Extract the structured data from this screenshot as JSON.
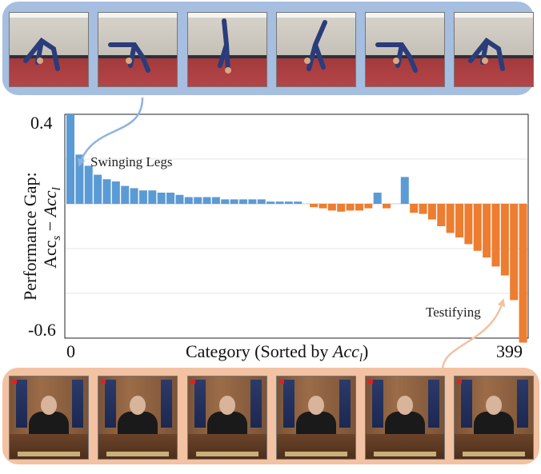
{
  "chart_data": {
    "type": "bar",
    "ylabel_line1": "Performance Gap:",
    "ylabel_line2_parts": [
      "Acc",
      "s",
      " − ",
      "Acc",
      "l"
    ],
    "xlabel_parts": [
      "Category (Sorted by ",
      "Acc",
      "l",
      ")"
    ],
    "ylim": [
      -0.6,
      0.4
    ],
    "yticks": [
      "0.4",
      "-0.6"
    ],
    "xticks": [
      "0",
      "399"
    ],
    "xlim": [
      0,
      399
    ],
    "grid": true,
    "series": [
      {
        "color": "#5b9bd5",
        "x": [
          0,
          8,
          16,
          24,
          32,
          40,
          48,
          56,
          64,
          72,
          80,
          88,
          96,
          104,
          112,
          120,
          128,
          136,
          144,
          152,
          160,
          168,
          176,
          184,
          192,
          200,
          270,
          294
        ],
        "values": [
          0.4,
          0.22,
          0.17,
          0.13,
          0.11,
          0.1,
          0.08,
          0.07,
          0.06,
          0.06,
          0.05,
          0.05,
          0.04,
          0.03,
          0.03,
          0.03,
          0.03,
          0.02,
          0.02,
          0.02,
          0.02,
          0.02,
          0.01,
          0.01,
          0.01,
          0.01,
          0.05,
          0.12
        ]
      },
      {
        "color": "#ed7d31",
        "x": [
          214,
          222,
          230,
          238,
          246,
          254,
          262,
          278,
          302,
          310,
          318,
          326,
          334,
          342,
          350,
          358,
          366,
          374,
          382,
          390,
          398
        ],
        "values": [
          -0.015,
          -0.02,
          -0.03,
          -0.035,
          -0.03,
          -0.03,
          -0.02,
          -0.02,
          -0.04,
          -0.045,
          -0.07,
          -0.1,
          -0.13,
          -0.15,
          -0.18,
          -0.21,
          -0.24,
          -0.28,
          -0.32,
          -0.43,
          -0.62
        ]
      }
    ],
    "annotations": [
      "Swinging Legs",
      "Testifying"
    ]
  },
  "colors": {
    "top_strip": "#a6bedf",
    "bottom_strip": "#f2c2a2",
    "arrow_blue": "#8fb3dd",
    "arrow_orange": "#f2c2a2"
  },
  "top_frames": [
    {
      "icon": "gymnast-bent-icon"
    },
    {
      "icon": "gymnast-leg-swing-icon"
    },
    {
      "icon": "gymnast-handstand-icon"
    },
    {
      "icon": "gymnast-cartwheel-icon"
    },
    {
      "icon": "gymnast-leg-swing-icon"
    },
    {
      "icon": "gymnast-bent-icon"
    }
  ],
  "bottom_frames": [
    {
      "icon": "judge-icon"
    },
    {
      "icon": "judge-icon"
    },
    {
      "icon": "judge-icon"
    },
    {
      "icon": "judge-icon"
    },
    {
      "icon": "judge-icon"
    },
    {
      "icon": "judge-icon"
    }
  ]
}
